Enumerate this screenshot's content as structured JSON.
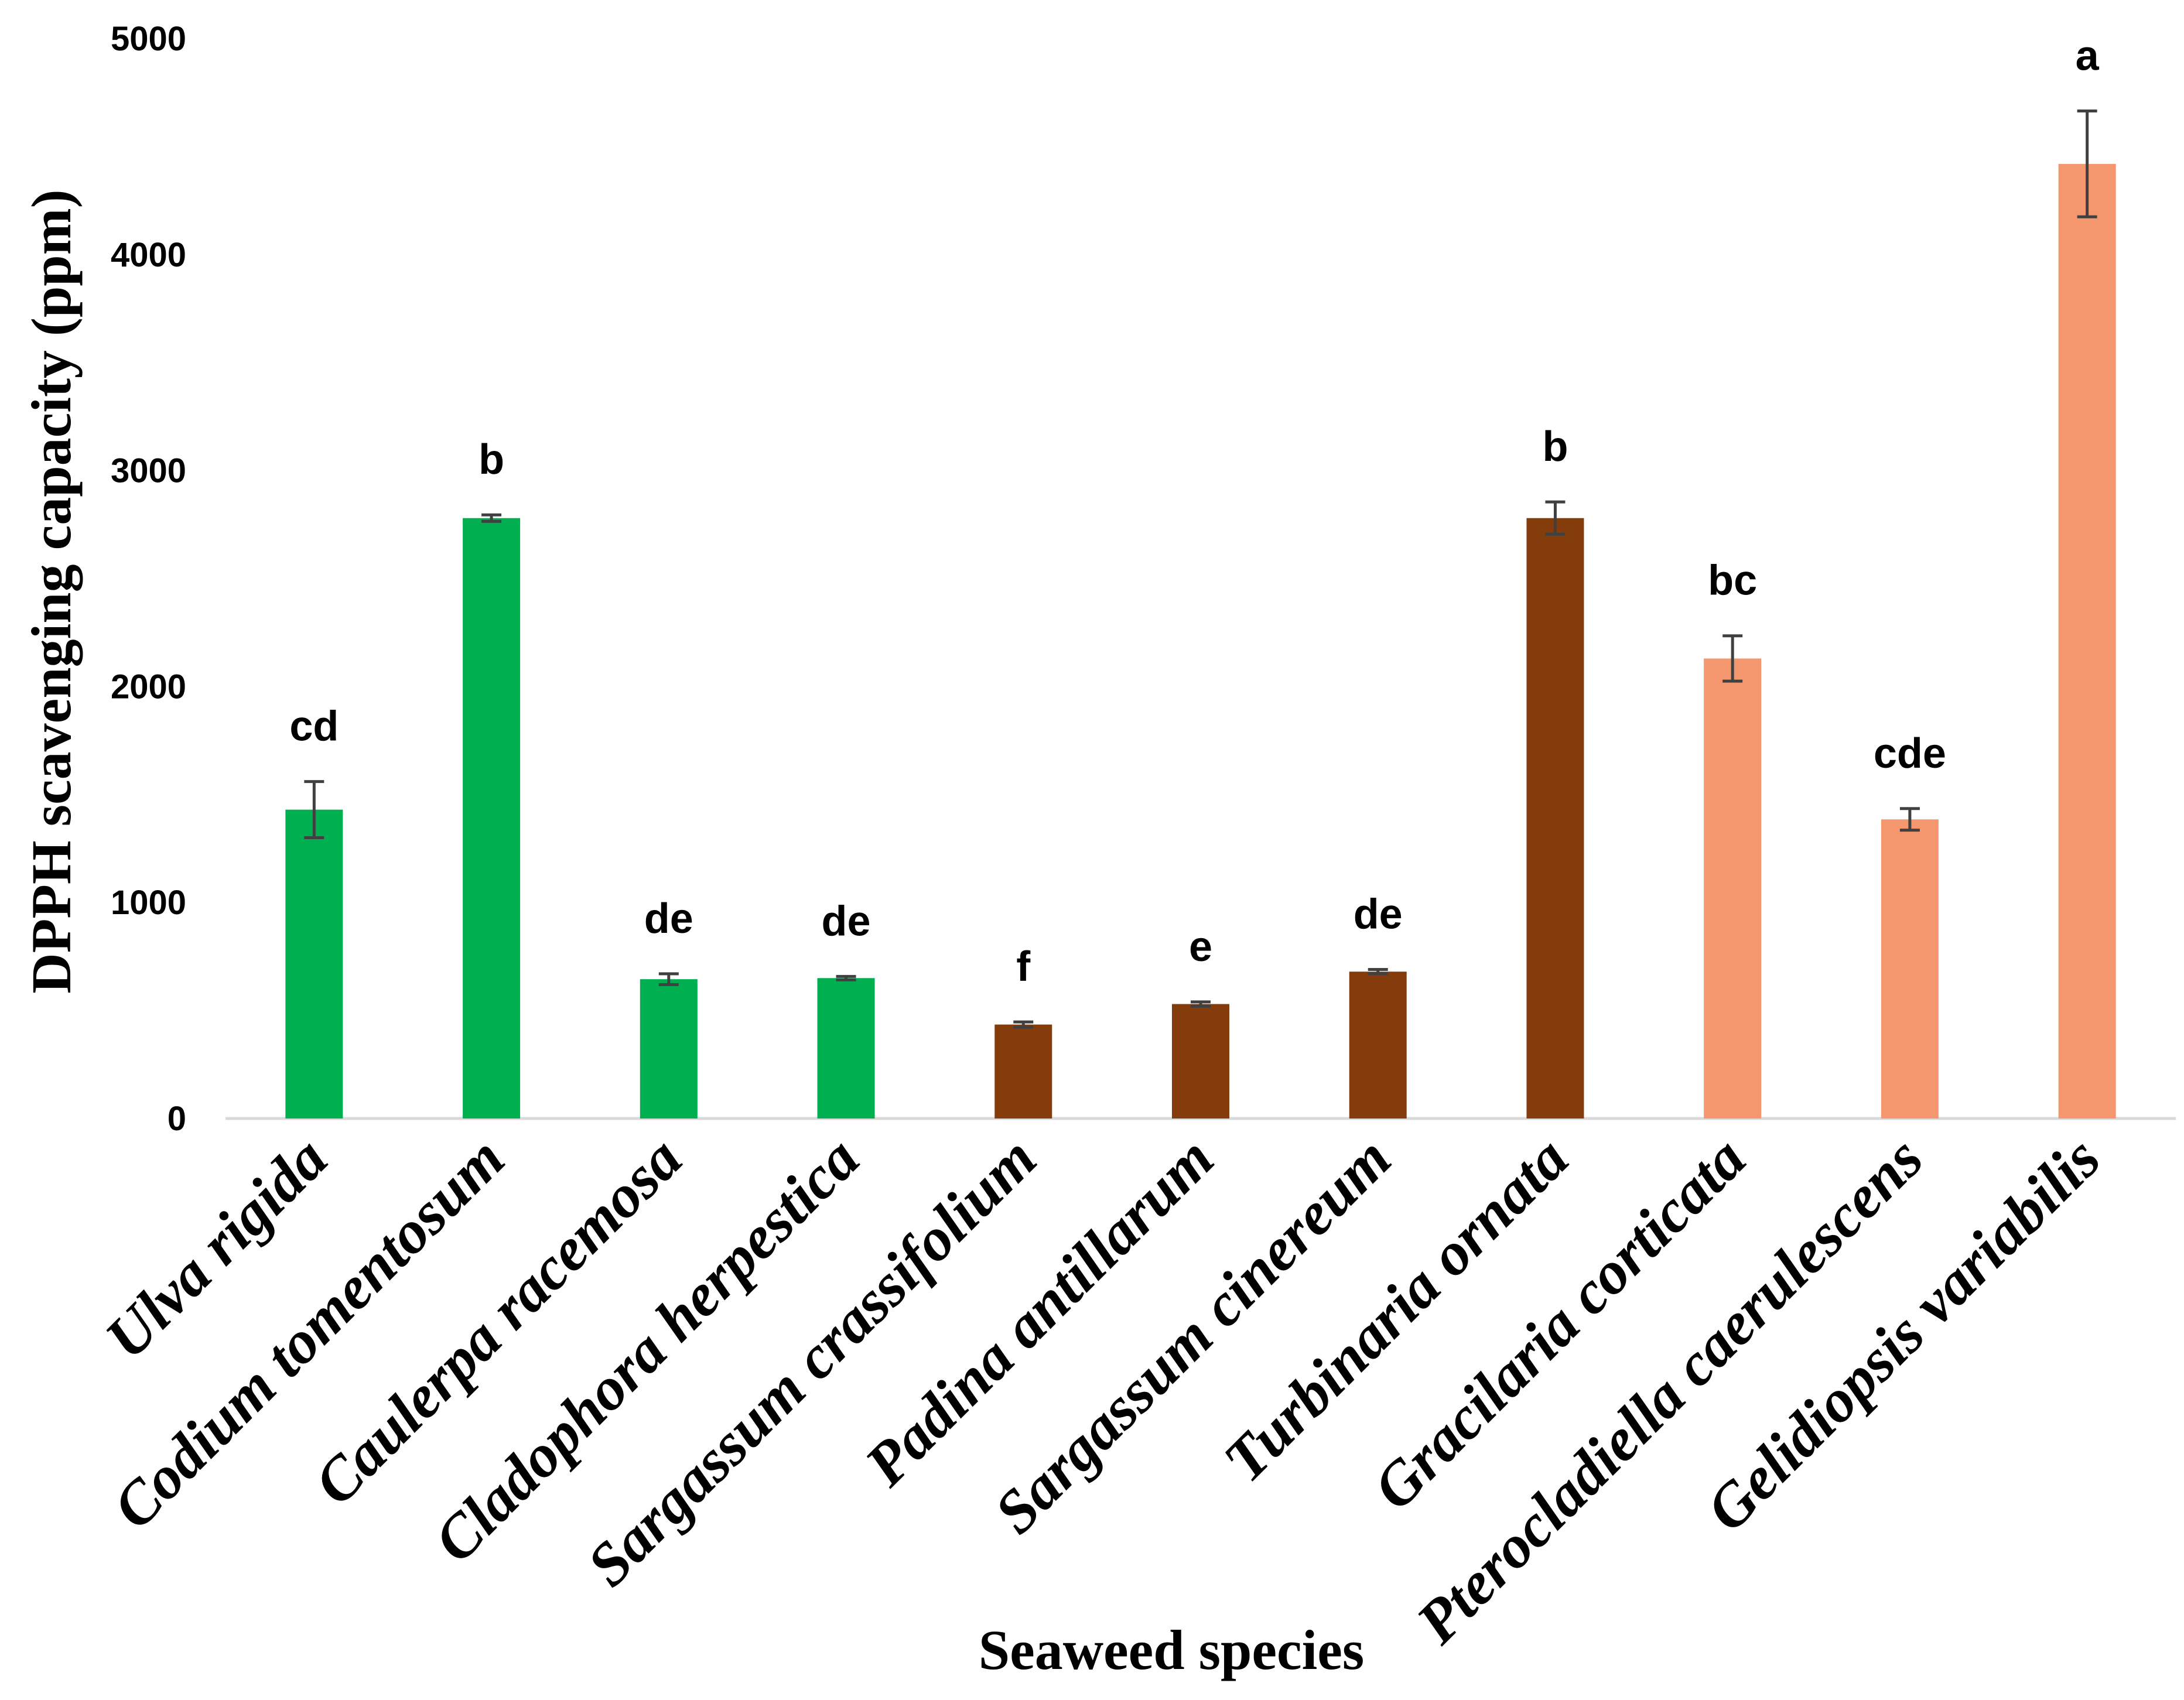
{
  "chart_data": {
    "type": "bar",
    "title": "",
    "xlabel": "Seaweed species",
    "ylabel": "DPPH scavenging capacity (ppm)",
    "ylim": [
      0,
      5000
    ],
    "yticks": [
      0,
      1000,
      2000,
      3000,
      4000,
      5000
    ],
    "ytick_labels": [
      "0",
      "1000",
      "2000",
      "3000",
      "4000",
      "5000"
    ],
    "grid": false,
    "categories": [
      "Ulva rigida",
      "Codium tomentosum",
      "Caulerpa racemosa",
      "Cladophora herpestica",
      "Sargassum crassifolium",
      "Padina antillarum",
      "Sargassum cinereum",
      "Turbinaria ornata",
      "Gracilaria corticata",
      "Pterocladiella caerulescens",
      "Gelidiopsis variabilis"
    ],
    "values": [
      1430,
      2780,
      645,
      650,
      435,
      530,
      680,
      2780,
      2130,
      1385,
      4420
    ],
    "errors": [
      130,
      15,
      25,
      8,
      12,
      10,
      10,
      75,
      105,
      50,
      245
    ],
    "significance": [
      "cd",
      "b",
      "de",
      "de",
      "f",
      "e",
      "de",
      "b",
      "bc",
      "cde",
      "a"
    ],
    "groups": [
      "green",
      "green",
      "green",
      "green",
      "brown",
      "brown",
      "brown",
      "brown",
      "red",
      "red",
      "red"
    ],
    "colors": {
      "green": "#00b050",
      "brown": "#843c0c",
      "red": "#f4976e",
      "error_bar": "#404040",
      "axis": "#d9d9d9"
    }
  }
}
